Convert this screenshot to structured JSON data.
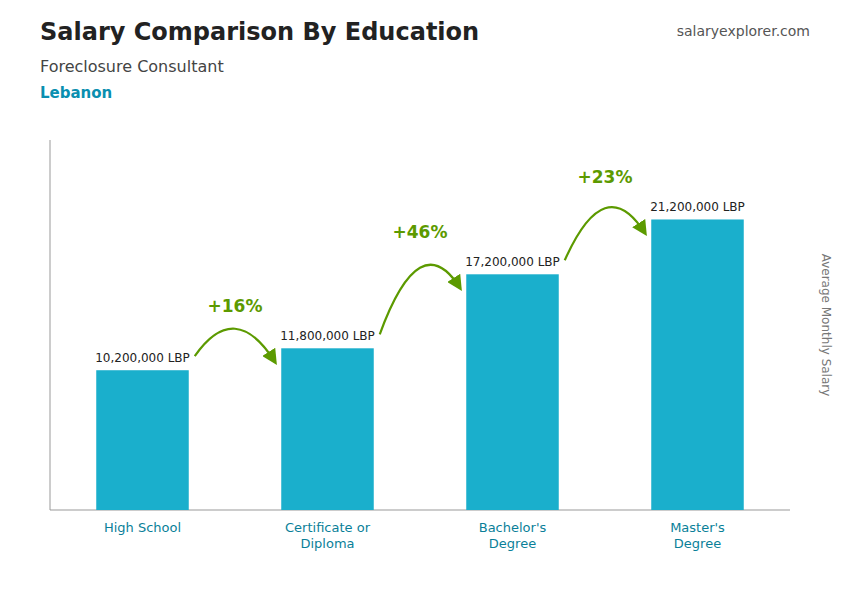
{
  "chart_data": {
    "type": "bar",
    "title": "Salary Comparison By Education",
    "subtitle": "Foreclosure Consultant",
    "annotations": {
      "country": "Lebanon",
      "source": "salaryexplorer.com",
      "changes": [
        "+16%",
        "+46%",
        "+23%"
      ]
    },
    "ylabel": "Average Monthly Salary",
    "categories": [
      "High School",
      "Certificate or\nDiploma",
      "Bachelor's\nDegree",
      "Master's\nDegree"
    ],
    "values": [
      10200000,
      11800000,
      17200000,
      21200000
    ],
    "value_labels": [
      "10,200,000 LBP",
      "11,800,000 LBP",
      "17,200,000 LBP",
      "21,200,000 LBP"
    ],
    "data_labels": true,
    "color": "#1aafcc",
    "ylim": [
      0,
      27000000
    ],
    "tick_labels": "x",
    "grid": false
  }
}
